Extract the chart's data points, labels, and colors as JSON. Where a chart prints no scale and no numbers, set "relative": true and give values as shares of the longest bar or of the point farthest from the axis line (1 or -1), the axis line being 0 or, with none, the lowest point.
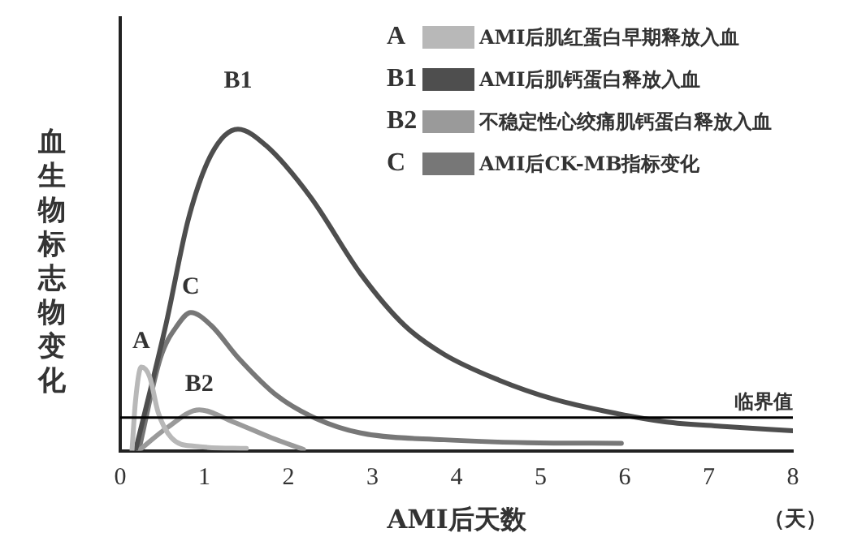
{
  "chart_data": {
    "type": "line",
    "relative": true,
    "xlabel": "AMI后天数",
    "ylabel": "血生物标志物变化",
    "xlim": [
      0,
      8
    ],
    "xticks": [
      0,
      1,
      2,
      3,
      4,
      5,
      6,
      7,
      8
    ],
    "grid": false,
    "legend": "top right",
    "marker": "none",
    "line_style": "solid",
    "series": [
      {
        "name": "AMI后肌红蛋白早期释放入血",
        "color": "#b8b8b8",
        "x": [
          0.14,
          0.18,
          0.25,
          0.35,
          0.45,
          0.61,
          0.88,
          1.5
        ],
        "values": [
          0,
          0.15,
          0.26,
          0.23,
          0.12,
          0.04,
          0.014,
          0.007
        ]
      },
      {
        "name": "AMI后肌钙蛋白释放入血",
        "color": "#4e4e4e",
        "x": [
          0.18,
          0.35,
          0.55,
          0.81,
          1.08,
          1.4,
          1.73,
          2.26,
          2.86,
          3.38,
          3.85,
          4.5,
          5.16,
          5.82,
          6.48,
          7.14,
          8
        ],
        "values": [
          0,
          0.18,
          0.4,
          0.72,
          0.92,
          1,
          0.95,
          0.79,
          0.55,
          0.39,
          0.3,
          0.22,
          0.16,
          0.12,
          0.09,
          0.076,
          0.062
        ]
      },
      {
        "name": "不稳定性心绞痛肌钙蛋白释放入血",
        "color": "#9a9a9a",
        "x": [
          0.22,
          0.55,
          0.94,
          1.34,
          1.8,
          2.18
        ],
        "values": [
          0,
          0.07,
          0.127,
          0.09,
          0.04,
          0.004
        ]
      },
      {
        "name": "AMI后CK-MB指标变化",
        "color": "#777777",
        "x": [
          0.22,
          0.48,
          0.68,
          0.84,
          1.08,
          1.4,
          1.87,
          2.33,
          2.86,
          3.85,
          4.84,
          5.96
        ],
        "values": [
          0,
          0.29,
          0.39,
          0.43,
          0.39,
          0.29,
          0.17,
          0.1,
          0.055,
          0.034,
          0.025,
          0.023
        ]
      }
    ],
    "ref_lines": [
      {
        "axis": "y",
        "value": 0.103,
        "label": "临界值",
        "color": "#000000"
      }
    ],
    "annotations": [
      "A",
      "B1",
      "B2",
      "C",
      "（天）"
    ]
  }
}
